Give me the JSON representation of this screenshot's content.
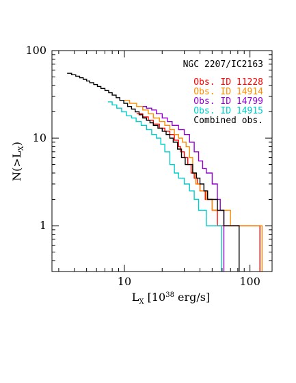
{
  "chart_data": {
    "type": "line",
    "step": true,
    "title": "NGC 2207/IC2163",
    "xlabel": {
      "main": "L",
      "sub": "X",
      "rest1": " [10",
      "sup": "38",
      "rest2": " erg/s]"
    },
    "ylabel": {
      "main": "N(>L",
      "sub": "X",
      "rest": ")"
    },
    "xscale": "log",
    "yscale": "log",
    "xlim": [
      2.65,
      150
    ],
    "ylim": [
      0.3,
      100
    ],
    "xticks": [
      {
        "value": 10,
        "label": "10"
      },
      {
        "value": 100,
        "label": "100"
      }
    ],
    "yticks": [
      {
        "value": 1,
        "label": "1"
      },
      {
        "value": 10,
        "label": "10"
      },
      {
        "value": 100,
        "label": "100"
      }
    ],
    "legend_placement": "top-right",
    "grid": false,
    "series": [
      {
        "name": "Obs. ID 11228",
        "color": "#ff0000",
        "x": [
          12.5,
          14,
          15.5,
          17,
          19,
          21,
          23,
          25,
          27,
          28,
          30,
          32,
          34,
          36,
          38,
          40,
          44,
          47,
          50,
          55,
          60,
          68,
          79,
          100,
          120
        ],
        "y": [
          19,
          17.5,
          16,
          14.5,
          13,
          12,
          11,
          9.5,
          8,
          7,
          6,
          5,
          4,
          3.5,
          3,
          2.5,
          2,
          2,
          1.5,
          1,
          1,
          1,
          1,
          1,
          1
        ]
      },
      {
        "name": "Obs. ID 14914",
        "color": "#ff8c00",
        "x": [
          10,
          11,
          12.5,
          14,
          15.5,
          17,
          19,
          21,
          23,
          25,
          27,
          29,
          31,
          33,
          35,
          37,
          40,
          45,
          50,
          60,
          70,
          90,
          110,
          125
        ],
        "y": [
          27,
          25,
          23,
          21,
          19,
          17,
          15.5,
          14,
          12.5,
          11,
          10,
          9,
          8,
          6,
          4,
          3,
          2.5,
          2,
          1.5,
          1.5,
          1,
          1,
          1,
          1
        ]
      },
      {
        "name": "Obs. ID 14799",
        "color": "#9400d3",
        "x": [
          14,
          15,
          16.5,
          18,
          20,
          22,
          24,
          27,
          30,
          33,
          36,
          39,
          42,
          45,
          50,
          55,
          58,
          62
        ],
        "y": [
          23,
          22,
          21,
          19,
          17,
          15.5,
          14,
          12.5,
          11,
          9,
          7,
          5.5,
          4.5,
          4,
          3,
          2,
          1.5,
          1
        ]
      },
      {
        "name": "Obs. ID 14915",
        "color": "#00cccc",
        "x": [
          7.4,
          8,
          8.7,
          9.5,
          10.4,
          11.4,
          12.4,
          13.6,
          15,
          16.5,
          18,
          19.5,
          21,
          23,
          25,
          27,
          30,
          33,
          36,
          39,
          42,
          45,
          50,
          55,
          59.5
        ],
        "y": [
          26,
          24,
          22,
          20,
          18,
          17,
          15.5,
          14,
          12.5,
          11,
          10,
          8.5,
          7,
          5,
          4,
          3.5,
          3,
          2.5,
          2,
          1.5,
          1.5,
          1,
          1,
          1,
          1
        ]
      },
      {
        "name": "Combined obs.",
        "color": "#000000",
        "x": [
          3.5,
          3.8,
          4.1,
          4.4,
          4.7,
          5.0,
          5.3,
          5.7,
          6.1,
          6.5,
          7.0,
          7.5,
          8.0,
          8.6,
          9.2,
          9.9,
          10.6,
          11.4,
          12.2,
          13.1,
          14,
          15,
          16,
          17,
          18.5,
          20,
          21.5,
          23,
          24.5,
          26.5,
          28.5,
          30.5,
          32.5,
          35,
          37.5,
          40,
          43,
          46,
          50,
          55,
          62,
          70,
          78,
          82
        ],
        "y": [
          55,
          53,
          51,
          49,
          47,
          45,
          43,
          41,
          39,
          37,
          35,
          33,
          31,
          29,
          27,
          25,
          23,
          21.5,
          20,
          18.5,
          17,
          16,
          15,
          14,
          13,
          12,
          11,
          10,
          9,
          7.5,
          6,
          5,
          5,
          4,
          3.5,
          3,
          2.5,
          2,
          2,
          1.5,
          1,
          1,
          1,
          1
        ]
      }
    ]
  }
}
